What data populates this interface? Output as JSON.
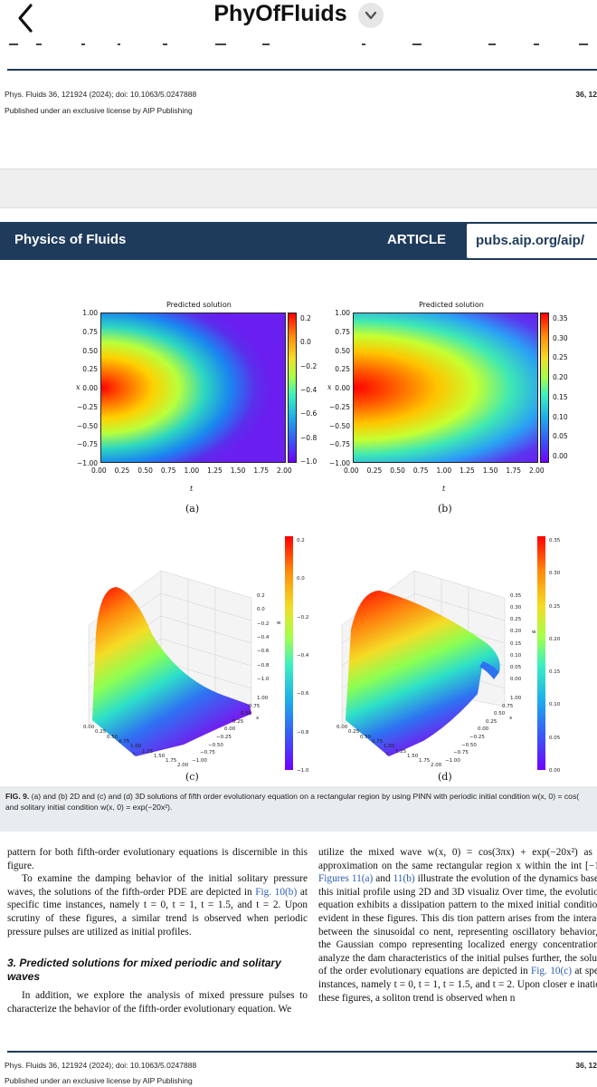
{
  "nav": {
    "title": "PhyOfFluids",
    "back_icon": "chevron-left-icon",
    "dropdown_icon": "chevron-down-icon"
  },
  "citation_top": {
    "line1": "Phys. Fluids 36, 121924 (2024); doi: 10.1063/5.0247888",
    "line2": "Published under an exclusive license by AIP Publishing",
    "page": "36, 12"
  },
  "journal_header": {
    "name": "Physics of Fluids",
    "type": "ARTICLE",
    "url": "pubs.aip.org/aip/"
  },
  "figure": {
    "panels": [
      {
        "id": "a",
        "label": "(a)",
        "chart_title": "Predicted solution",
        "ylabel": "x",
        "xlabel": "t",
        "x_ticks": [
          "0.00",
          "0.25",
          "0.50",
          "0.75",
          "1.00",
          "1.25",
          "1.50",
          "1.75",
          "2.00"
        ],
        "y_ticks": [
          "1.00",
          "0.75",
          "0.50",
          "0.25",
          "0.00",
          "−0.25",
          "−0.50",
          "−0.75",
          "−1.00"
        ],
        "cbar_ticks": [
          "0.2",
          "0.0",
          "−0.2",
          "−0.4",
          "−0.6",
          "−0.8",
          "−1.0"
        ]
      },
      {
        "id": "b",
        "label": "(b)",
        "chart_title": "Predicted solution",
        "ylabel": "x",
        "xlabel": "t",
        "x_ticks": [
          "0.00",
          "0.25",
          "0.50",
          "0.75",
          "1.00",
          "1.25",
          "1.50",
          "1.75",
          "2.00"
        ],
        "y_ticks": [
          "1.00",
          "0.75",
          "0.50",
          "0.25",
          "0.00",
          "−0.25",
          "−0.50",
          "−0.75",
          "−1.00"
        ],
        "cbar_ticks": [
          "0.35",
          "0.30",
          "0.25",
          "0.20",
          "0.15",
          "0.10",
          "0.05",
          "0.00"
        ]
      },
      {
        "id": "c",
        "label": "(c)",
        "cbar_ticks": [
          "0.2",
          "0.0",
          "−0.2",
          "−0.4",
          "−0.6",
          "−0.8",
          "−1.0"
        ],
        "z_ticks": [
          "0.2",
          "0.0",
          "−0.2",
          "−0.4",
          "−0.6",
          "−0.8",
          "−1.0"
        ],
        "t_ticks": [
          "0.00",
          "0.25",
          "0.50",
          "0.75",
          "1.00",
          "1.25",
          "1.50",
          "1.75",
          "2.00"
        ],
        "x_ticks": [
          "1.00",
          "0.75",
          "0.50",
          "0.25",
          "0.00",
          "−0.25",
          "−0.50",
          "−0.75",
          "−1.00"
        ],
        "zlabel": "w",
        "tlabel": "t",
        "xlabel": "x"
      },
      {
        "id": "d",
        "label": "(d)",
        "cbar_ticks": [
          "0.35",
          "0.30",
          "0.25",
          "0.20",
          "0.15",
          "0.10",
          "0.05",
          "0.00"
        ],
        "z_ticks": [
          "0.35",
          "0.30",
          "0.25",
          "0.20",
          "0.15",
          "0.10",
          "0.05",
          "0.00"
        ],
        "t_ticks": [
          "0.00",
          "0.25",
          "0.50",
          "0.75",
          "1.00",
          "1.25",
          "1.50",
          "1.75",
          "2.00"
        ],
        "x_ticks": [
          "1.00",
          "0.75",
          "0.50",
          "0.25",
          "0.00",
          "−0.25",
          "−0.50",
          "−0.75",
          "−1.00"
        ],
        "zlabel": "w",
        "tlabel": "t",
        "xlabel": "x"
      }
    ],
    "caption_label": "FIG. 9.",
    "caption_text": " (a) and (b) 2D and (c) and (d) 3D solutions of fifth order evolutionary equation on a rectangular region by using PINN with periodic initial condition w(x, 0) = cos(",
    "caption_line2": "and solitary initial condition w(x, 0) = exp(−20x²)."
  },
  "body": {
    "left_p1": "pattern for both fifth-order evolutionary equations is discernible in this figure.",
    "left_p2_a": "To examine the damping behavior of the initial solitary pressure waves, the solutions of the fifth-order PDE are depicted in ",
    "left_p2_link": "Fig. 10(b)",
    "left_p2_b": " at specific time instances, namely t = 0, t = 1, t = 1.5, and t = 2. Upon scrutiny of these figures, a similar trend is observed when periodic pressure pulses are utilized as initial profiles.",
    "section_heading": "3. Predicted solutions for mixed periodic and solitary waves",
    "left_p3": "In addition, we explore the analysis of mixed pressure pulses to characterize the behavior of the fifth-order evolutionary equation. We",
    "right_p1_a": "utilize the mixed wave w(x, 0) = cos(3πx) + exp(−20x²) as an i approximation on the same rectangular region x within the int [−1, 1]. ",
    "right_p1_link1": "Figures 11(a)",
    "right_p1_and": " and ",
    "right_p1_link2": "11(b)",
    "right_p1_b": " illustrate the evolution of the dynamics based on this initial profile using 2D and 3D visualiz Over time, the evolutionary equation exhibits a dissipation pattern to the mixed initial condition, as evident in these figures. This dis tion pattern arises from the interaction between the sinusoidal co nent, representing oscillatory behavior, and the Gaussian compo representing localized energy concentration. To analyze the dam characteristics of the initial pulses further, the solutions of the order evolutionary equations are depicted in ",
    "right_p1_link3": "Fig. 10(c)",
    "right_p1_c": " at specific instances, namely t = 0, t = 1, t = 1.5, and t = 2. Upon closer e ination of these figures, a soliton trend is observed when n"
  },
  "citation_bottom": {
    "line1": "Phys. Fluids 36, 121924 (2024); doi: 10.1063/5.0247888",
    "line2": "Published under an exclusive license by AIP Publishing",
    "page": "36, 12"
  }
}
